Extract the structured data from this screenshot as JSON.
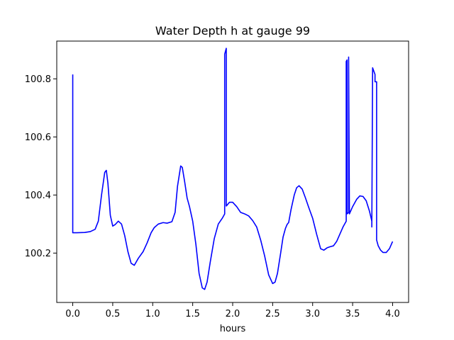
{
  "chart_data": {
    "type": "line",
    "title": "Water Depth h at gauge 99",
    "xlabel": "hours",
    "ylabel": "",
    "xlim": [
      -0.2,
      4.2
    ],
    "ylim": [
      100.03,
      100.93
    ],
    "xticks": [
      0.0,
      0.5,
      1.0,
      1.5,
      2.0,
      2.5,
      3.0,
      3.5,
      4.0
    ],
    "xtick_labels": [
      "0.0",
      "0.5",
      "1.0",
      "1.5",
      "2.0",
      "2.5",
      "3.0",
      "3.5",
      "4.0"
    ],
    "yticks": [
      100.2,
      100.4,
      100.6,
      100.8
    ],
    "ytick_labels": [
      "100.2",
      "100.4",
      "100.6",
      "100.8"
    ],
    "grid": false,
    "legend": "none",
    "series": [
      {
        "color": "#0000ff",
        "x": [
          0.0,
          0.0,
          0.0,
          0.05,
          0.15,
          0.22,
          0.28,
          0.32,
          0.36,
          0.4,
          0.42,
          0.44,
          0.47,
          0.5,
          0.53,
          0.57,
          0.61,
          0.65,
          0.69,
          0.73,
          0.77,
          0.82,
          0.88,
          0.93,
          0.98,
          1.02,
          1.07,
          1.13,
          1.18,
          1.24,
          1.28,
          1.31,
          1.35,
          1.37,
          1.4,
          1.43,
          1.46,
          1.5,
          1.54,
          1.58,
          1.62,
          1.65,
          1.68,
          1.72,
          1.77,
          1.82,
          1.87,
          1.9,
          1.9,
          1.92,
          1.92,
          1.93,
          1.96,
          2.0,
          2.05,
          2.1,
          2.15,
          2.2,
          2.25,
          2.3,
          2.35,
          2.4,
          2.45,
          2.5,
          2.53,
          2.56,
          2.6,
          2.63,
          2.66,
          2.68,
          2.69,
          2.7,
          2.73,
          2.77,
          2.8,
          2.83,
          2.87,
          2.91,
          2.95,
          3.0,
          3.05,
          3.1,
          3.14,
          3.18,
          3.22,
          3.26,
          3.3,
          3.34,
          3.38,
          3.42,
          3.42,
          3.43,
          3.43,
          3.45,
          3.45,
          3.46,
          3.5,
          3.55,
          3.59,
          3.63,
          3.67,
          3.71,
          3.74,
          3.74,
          3.75,
          3.78,
          3.78,
          3.8,
          3.8,
          3.82,
          3.85,
          3.88,
          3.92,
          3.96,
          4.0
        ],
        "y": [
          100.815,
          100.27,
          100.27,
          100.27,
          100.271,
          100.274,
          100.282,
          100.31,
          100.4,
          100.478,
          100.485,
          100.44,
          100.33,
          100.293,
          100.298,
          100.31,
          100.3,
          100.26,
          100.205,
          100.165,
          100.158,
          100.182,
          100.205,
          100.235,
          100.27,
          100.288,
          100.3,
          100.305,
          100.303,
          100.308,
          100.34,
          100.43,
          100.5,
          100.495,
          100.445,
          100.39,
          100.36,
          100.31,
          100.23,
          100.13,
          100.08,
          100.075,
          100.1,
          100.17,
          100.25,
          100.3,
          100.32,
          100.335,
          100.885,
          100.905,
          100.362,
          100.365,
          100.375,
          100.375,
          100.36,
          100.34,
          100.335,
          100.328,
          100.312,
          100.29,
          100.245,
          100.19,
          100.125,
          100.095,
          100.1,
          100.13,
          100.2,
          100.255,
          100.285,
          100.298,
          100.302,
          100.305,
          100.35,
          100.4,
          100.425,
          100.432,
          100.42,
          100.39,
          100.358,
          100.32,
          100.265,
          100.215,
          100.21,
          100.218,
          100.222,
          100.225,
          100.24,
          100.265,
          100.29,
          100.31,
          100.86,
          100.865,
          100.335,
          100.34,
          100.875,
          100.335,
          100.36,
          100.385,
          100.397,
          100.395,
          100.38,
          100.345,
          100.31,
          100.29,
          100.838,
          100.815,
          100.79,
          100.79,
          100.245,
          100.225,
          100.21,
          100.202,
          100.202,
          100.215,
          100.24
        ]
      }
    ]
  }
}
